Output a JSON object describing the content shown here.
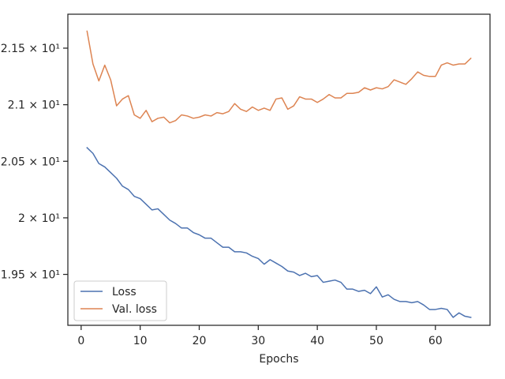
{
  "chart_data": {
    "type": "line",
    "title": "",
    "xlabel": "Epochs",
    "ylabel": "",
    "xlim": [
      -2.25,
      69.25
    ],
    "ylim": [
      19.05,
      21.8
    ],
    "xticks": [
      0,
      10,
      20,
      30,
      40,
      50,
      60
    ],
    "xtick_labels": [
      "0",
      "10",
      "20",
      "30",
      "40",
      "50",
      "60"
    ],
    "yticks": [
      19.5,
      20.0,
      20.5,
      21.0,
      21.5
    ],
    "ytick_labels": [
      "1.95 × 10¹",
      "2 × 10¹",
      "2.05 × 10¹",
      "2.1 × 10¹",
      "2.15 × 10¹"
    ],
    "grid": false,
    "legend_placement": "lower-left",
    "x": [
      1,
      2,
      3,
      4,
      5,
      6,
      7,
      8,
      9,
      10,
      11,
      12,
      13,
      14,
      15,
      16,
      17,
      18,
      19,
      20,
      21,
      22,
      23,
      24,
      25,
      26,
      27,
      28,
      29,
      30,
      31,
      32,
      33,
      34,
      35,
      36,
      37,
      38,
      39,
      40,
      41,
      42,
      43,
      44,
      45,
      46,
      47,
      48,
      49,
      50,
      51,
      52,
      53,
      54,
      55,
      56,
      57,
      58,
      59,
      60,
      61,
      62,
      63,
      64,
      65,
      66
    ],
    "series": [
      {
        "name": "Loss",
        "color": "#4c72b0",
        "values": [
          20.62,
          20.57,
          20.48,
          20.45,
          20.4,
          20.35,
          20.28,
          20.25,
          20.19,
          20.17,
          20.12,
          20.07,
          20.08,
          20.03,
          19.98,
          19.95,
          19.91,
          19.91,
          19.87,
          19.85,
          19.82,
          19.82,
          19.78,
          19.74,
          19.74,
          19.7,
          19.7,
          19.69,
          19.66,
          19.64,
          19.59,
          19.63,
          19.6,
          19.57,
          19.53,
          19.52,
          19.49,
          19.51,
          19.48,
          19.49,
          19.43,
          19.44,
          19.45,
          19.43,
          19.37,
          19.37,
          19.35,
          19.36,
          19.33,
          19.39,
          19.3,
          19.32,
          19.28,
          19.26,
          19.26,
          19.25,
          19.26,
          19.23,
          19.19,
          19.19,
          19.2,
          19.19,
          19.12,
          19.16,
          19.13,
          19.12
        ]
      },
      {
        "name": "Val. loss",
        "color": "#dd8452",
        "values": [
          21.65,
          21.36,
          21.21,
          21.35,
          21.22,
          20.99,
          21.05,
          21.08,
          20.91,
          20.88,
          20.95,
          20.85,
          20.88,
          20.89,
          20.84,
          20.86,
          20.91,
          20.9,
          20.88,
          20.89,
          20.91,
          20.9,
          20.93,
          20.92,
          20.94,
          21.01,
          20.96,
          20.94,
          20.98,
          20.95,
          20.97,
          20.95,
          21.05,
          21.06,
          20.96,
          20.99,
          21.07,
          21.05,
          21.05,
          21.02,
          21.05,
          21.09,
          21.06,
          21.06,
          21.1,
          21.1,
          21.11,
          21.15,
          21.13,
          21.15,
          21.14,
          21.16,
          21.22,
          21.2,
          21.18,
          21.23,
          21.29,
          21.26,
          21.25,
          21.25,
          21.35,
          21.37,
          21.35,
          21.36,
          21.36,
          21.41
        ]
      }
    ]
  }
}
